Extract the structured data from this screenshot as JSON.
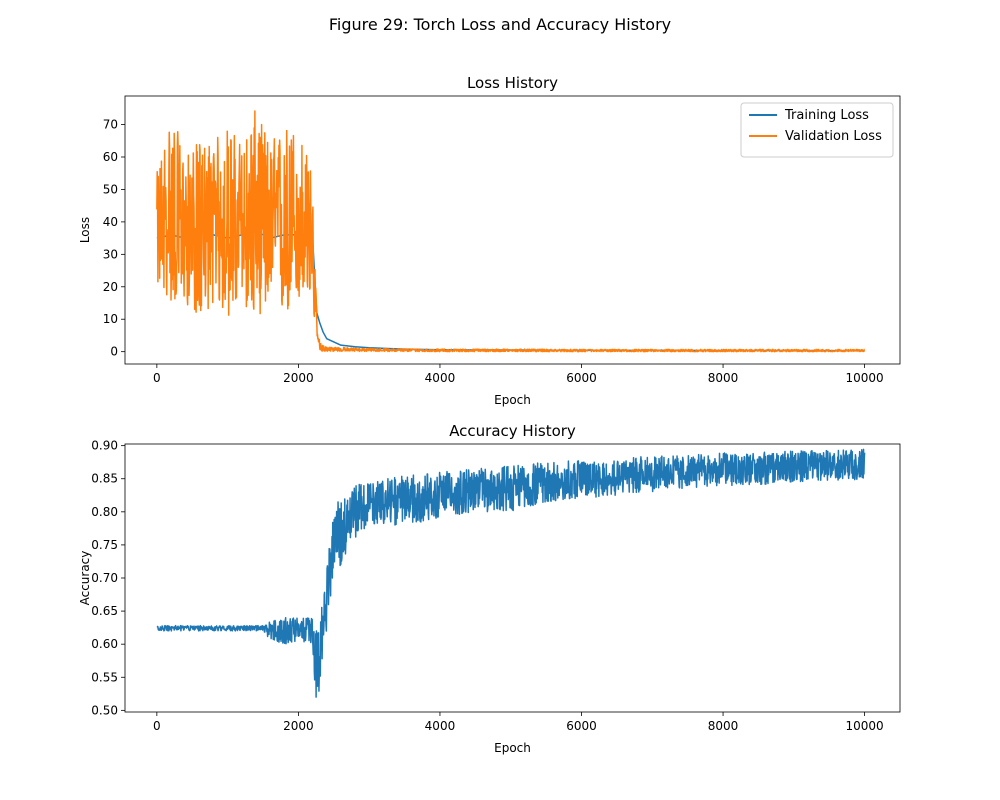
{
  "figure": {
    "title": "Figure 29: Torch Loss and Accuracy History"
  },
  "chart_data": [
    {
      "type": "line",
      "title": "Loss History",
      "xlabel": "Epoch",
      "ylabel": "Loss",
      "xlim": [
        -450,
        10500
      ],
      "ylim": [
        -3.8,
        78.8
      ],
      "xticks": [
        0,
        2000,
        4000,
        6000,
        8000,
        10000
      ],
      "yticks": [
        0,
        10,
        20,
        30,
        40,
        50,
        60,
        70
      ],
      "grid": false,
      "legend": "top-right",
      "series": [
        {
          "name": "Training Loss",
          "color": "#1f77b4",
          "x": [
            0,
            200,
            400,
            600,
            800,
            1000,
            1200,
            1400,
            1600,
            1800,
            2000,
            2200,
            2260,
            2300,
            2350,
            2400,
            2500,
            2600,
            2800,
            3000,
            3500,
            4000,
            5000,
            6000,
            7000,
            8000,
            9000,
            10000
          ],
          "y": [
            35,
            36,
            35,
            37,
            36,
            35,
            36,
            37,
            35,
            36,
            36,
            35,
            12,
            9,
            6,
            4,
            3,
            2,
            1.5,
            1.2,
            0.8,
            0.6,
            0.5,
            0.4,
            0.4,
            0.35,
            0.35,
            0.3
          ]
        },
        {
          "name": "Validation Loss",
          "color": "#ff7f0e",
          "x": [
            0,
            200,
            400,
            600,
            800,
            1000,
            1200,
            1400,
            1600,
            1800,
            2000,
            2200,
            2260,
            2300,
            2400,
            3000,
            4000,
            5000,
            6000,
            7000,
            8000,
            9000,
            10000
          ],
          "y": [
            38,
            37,
            36,
            37,
            38,
            36,
            37,
            38,
            36,
            37,
            37,
            36,
            5,
            1,
            0.8,
            0.5,
            0.4,
            0.4,
            0.35,
            0.35,
            0.3,
            0.3,
            0.3
          ],
          "band_min": [
            20,
            15,
            15,
            10,
            15,
            10,
            15,
            10,
            15,
            10,
            15,
            15,
            0.5,
            0.2,
            0.1,
            0.1,
            0,
            0,
            0,
            0,
            0,
            0,
            0
          ],
          "band_max": [
            55,
            75,
            60,
            65,
            65,
            70,
            65,
            75,
            65,
            70,
            70,
            55,
            10,
            3,
            1.5,
            1.0,
            0.8,
            0.8,
            0.7,
            0.7,
            0.7,
            0.7,
            0.7
          ]
        }
      ]
    },
    {
      "type": "line",
      "title": "Accuracy History",
      "xlabel": "Epoch",
      "ylabel": "Accuracy",
      "xlim": [
        -450,
        10500
      ],
      "ylim": [
        0.4975,
        0.9025
      ],
      "xticks": [
        0,
        2000,
        4000,
        6000,
        8000,
        10000
      ],
      "yticks": [
        0.5,
        0.55,
        0.6,
        0.65,
        0.7,
        0.75,
        0.8,
        0.85,
        0.9
      ],
      "grid": false,
      "series": [
        {
          "name": "",
          "color": "#1f77b4",
          "x": [
            0,
            500,
            1000,
            1500,
            1600,
            1800,
            2000,
            2200,
            2250,
            2300,
            2350,
            2400,
            2450,
            2500,
            2600,
            2700,
            2800,
            3000,
            3500,
            4000,
            4500,
            5000,
            5500,
            6000,
            6500,
            7000,
            7500,
            8000,
            8500,
            9000,
            9500,
            10000
          ],
          "y": [
            0.625,
            0.625,
            0.625,
            0.625,
            0.62,
            0.62,
            0.622,
            0.62,
            0.56,
            0.57,
            0.62,
            0.68,
            0.72,
            0.75,
            0.78,
            0.79,
            0.8,
            0.81,
            0.82,
            0.83,
            0.835,
            0.84,
            0.845,
            0.85,
            0.855,
            0.86,
            0.862,
            0.865,
            0.868,
            0.87,
            0.872,
            0.875
          ],
          "band_min": [
            0.62,
            0.62,
            0.62,
            0.62,
            0.605,
            0.6,
            0.605,
            0.6,
            0.51,
            0.52,
            0.59,
            0.62,
            0.67,
            0.7,
            0.72,
            0.74,
            0.76,
            0.78,
            0.78,
            0.79,
            0.8,
            0.8,
            0.815,
            0.82,
            0.825,
            0.83,
            0.835,
            0.84,
            0.84,
            0.845,
            0.845,
            0.85
          ],
          "band_max": [
            0.628,
            0.628,
            0.628,
            0.628,
            0.635,
            0.64,
            0.64,
            0.64,
            0.63,
            0.64,
            0.67,
            0.73,
            0.77,
            0.8,
            0.825,
            0.83,
            0.84,
            0.845,
            0.855,
            0.86,
            0.865,
            0.87,
            0.875,
            0.878,
            0.88,
            0.885,
            0.885,
            0.89,
            0.89,
            0.892,
            0.893,
            0.895
          ]
        }
      ]
    }
  ]
}
